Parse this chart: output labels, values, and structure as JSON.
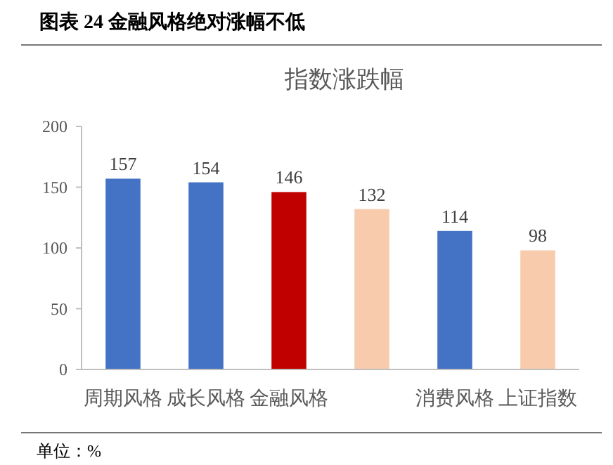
{
  "chart_data": {
    "type": "bar",
    "title": "图表 24 金融风格绝对涨幅不低",
    "subtitle": "指数涨跌幅",
    "categories": [
      "周期风格",
      "成长风格",
      "金融风格",
      null,
      "消费风格",
      "上证指数"
    ],
    "values": [
      157,
      154,
      146,
      132,
      114,
      98
    ],
    "colors": [
      "#4472c4",
      "#4472c4",
      "#c00000",
      "#f8cbad",
      "#4472c4",
      "#f8cbad"
    ],
    "ylim": [
      0,
      200
    ],
    "yticks": [
      0,
      50,
      100,
      150,
      200
    ],
    "data_labels": true,
    "annotations": [
      "单位：%"
    ]
  }
}
